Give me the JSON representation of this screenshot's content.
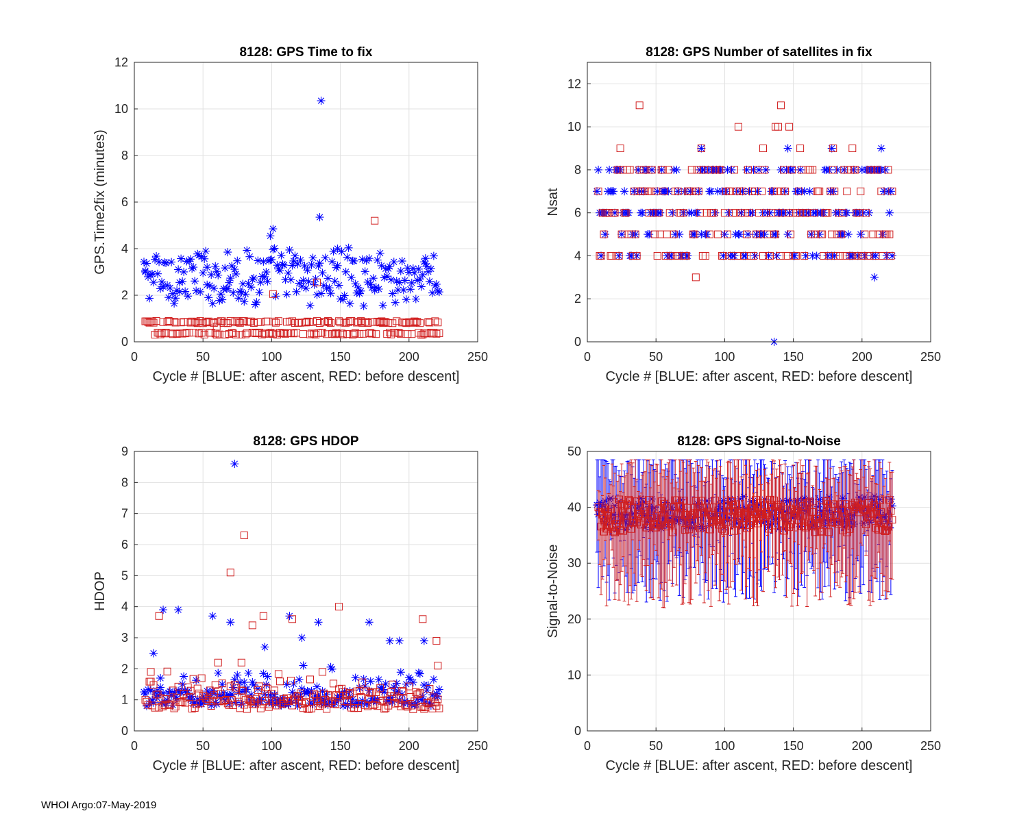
{
  "footer": "WHOI Argo:07-May-2019",
  "colors": {
    "after_ascent": "#0000ff",
    "before_descent": "#d11e1e",
    "grid": "#e1e1e1",
    "axis": "#262626"
  },
  "chart_data": [
    {
      "id": "time2fix",
      "type": "scatter",
      "title": "8128: GPS Time to fix",
      "xlabel": "Cycle #  [BLUE: after ascent, RED: before descent]",
      "ylabel": "GPS.Time2fix (minutes)",
      "xlim": [
        0,
        250
      ],
      "ylim": [
        0,
        12
      ],
      "xticks": [
        0,
        50,
        100,
        150,
        200,
        250
      ],
      "yticks": [
        0,
        2,
        4,
        6,
        8,
        10,
        12
      ],
      "series": [
        {
          "name": "after ascent",
          "marker": "star",
          "color": "#0000ff",
          "gen": {
            "type": "random",
            "x0": 7,
            "x1": 222,
            "base": 1.8,
            "spread": 2.0,
            "min": 0.6
          },
          "extra": [
            [
              136,
              10.35
            ],
            [
              135,
              5.35
            ],
            [
              101,
              4.85
            ],
            [
              99,
              4.55
            ],
            [
              148,
              4.0
            ],
            [
              68,
              3.85
            ],
            [
              33,
              2.55
            ],
            [
              8,
              3.05
            ],
            [
              53,
              3.2
            ],
            [
              212,
              3.35
            ]
          ]
        },
        {
          "name": "before descent",
          "marker": "square",
          "color": "#d11e1e",
          "gen": {
            "type": "levels",
            "x0": 8,
            "x1": 222,
            "levels": [
              0.35,
              0.85
            ],
            "noise": 0.05
          },
          "extra": [
            [
              175,
              5.2
            ],
            [
              133,
              2.55
            ],
            [
              101,
              2.05
            ],
            [
              60,
              0.65
            ]
          ]
        }
      ]
    },
    {
      "id": "nsat",
      "type": "scatter",
      "title": "8128: GPS Number of satellites in fix",
      "xlabel": "Cycle #  [BLUE: after ascent, RED: before descent]",
      "ylabel": "Nsat",
      "xlim": [
        0,
        250
      ],
      "ylim": [
        0,
        13
      ],
      "xticks": [
        0,
        50,
        100,
        150,
        200,
        250
      ],
      "yticks": [
        0,
        2,
        4,
        6,
        8,
        10,
        12
      ],
      "series": [
        {
          "name": "after ascent",
          "marker": "star",
          "color": "#0000ff",
          "gen": {
            "type": "levels",
            "x0": 7,
            "x1": 222,
            "levels": [
              4,
              5,
              6,
              7,
              8
            ],
            "noise": 0
          },
          "extra": [
            [
              136,
              0
            ],
            [
              209,
              3
            ],
            [
              83,
              9
            ],
            [
              146,
              9
            ],
            [
              178,
              9
            ],
            [
              214,
              9
            ]
          ]
        },
        {
          "name": "before descent",
          "marker": "square",
          "color": "#d11e1e",
          "gen": {
            "type": "levels",
            "x0": 8,
            "x1": 222,
            "levels": [
              4,
              5,
              6,
              7,
              8
            ],
            "noise": 0
          },
          "extra": [
            [
              38,
              11
            ],
            [
              141,
              11
            ],
            [
              110,
              10
            ],
            [
              137,
              10
            ],
            [
              139,
              10
            ],
            [
              147,
              10
            ],
            [
              24,
              9
            ],
            [
              83,
              9
            ],
            [
              128,
              9
            ],
            [
              155,
              9
            ],
            [
              179,
              9
            ],
            [
              193,
              9
            ],
            [
              79,
              3
            ]
          ]
        }
      ]
    },
    {
      "id": "hdop",
      "type": "scatter",
      "title": "8128: GPS HDOP",
      "xlabel": "Cycle #  [BLUE: after ascent, RED: before descent]",
      "ylabel": "HDOP",
      "xlim": [
        0,
        250
      ],
      "ylim": [
        0,
        9
      ],
      "xticks": [
        0,
        50,
        100,
        150,
        200,
        250
      ],
      "yticks": [
        0,
        1,
        2,
        3,
        4,
        5,
        6,
        7,
        8,
        9
      ],
      "series": [
        {
          "name": "after ascent",
          "marker": "star",
          "color": "#0000ff",
          "gen": {
            "type": "random",
            "x0": 7,
            "x1": 222,
            "base": 0.85,
            "spread": 1.0,
            "min": 0.8,
            "skew": 3
          },
          "extra": [
            [
              73,
              8.6
            ],
            [
              21,
              3.9
            ],
            [
              32,
              3.9
            ],
            [
              57,
              3.7
            ],
            [
              70,
              3.5
            ],
            [
              113,
              3.7
            ],
            [
              134,
              3.5
            ],
            [
              171,
              3.5
            ],
            [
              14,
              2.5
            ],
            [
              19,
              1.7
            ],
            [
              95,
              2.7
            ],
            [
              122,
              3.0
            ],
            [
              186,
              2.9
            ],
            [
              193,
              2.9
            ],
            [
              211,
              2.9
            ]
          ]
        },
        {
          "name": "before descent",
          "marker": "square",
          "color": "#d11e1e",
          "gen": {
            "type": "random",
            "x0": 8,
            "x1": 222,
            "base": 0.8,
            "spread": 0.8,
            "min": 0.7,
            "skew": 3
          },
          "extra": [
            [
              80,
              6.3
            ],
            [
              70,
              5.1
            ],
            [
              149,
              4.0
            ],
            [
              18,
              3.7
            ],
            [
              94,
              3.7
            ],
            [
              115,
              3.6
            ],
            [
              210,
              3.6
            ],
            [
              86,
              3.4
            ],
            [
              220,
              2.9
            ],
            [
              61,
              2.2
            ],
            [
              78,
              2.2
            ],
            [
              12,
              1.9
            ],
            [
              137,
              1.9
            ],
            [
              221,
              2.1
            ]
          ]
        }
      ]
    },
    {
      "id": "snr",
      "type": "errorbar",
      "title": "8128: GPS Signal-to-Noise",
      "xlabel": "Cycle #  [BLUE: after ascent, RED: before descent]",
      "ylabel": "Signal-to-Noise",
      "xlim": [
        0,
        250
      ],
      "ylim": [
        0,
        50
      ],
      "xticks": [
        0,
        50,
        100,
        150,
        200,
        250
      ],
      "yticks": [
        0,
        10,
        20,
        30,
        40,
        50
      ],
      "series": [
        {
          "name": "after ascent",
          "marker": "star",
          "color": "#0000ff",
          "gen": {
            "type": "snr",
            "x0": 7,
            "x1": 222,
            "mean": 39,
            "spread": 6,
            "low": 28,
            "high": 47
          },
          "extra": []
        },
        {
          "name": "before descent",
          "marker": "square",
          "color": "#d11e1e",
          "gen": {
            "type": "snr",
            "x0": 8,
            "x1": 222,
            "mean": 38.5,
            "spread": 6,
            "low": 27,
            "high": 46
          },
          "extra": []
        }
      ]
    }
  ]
}
